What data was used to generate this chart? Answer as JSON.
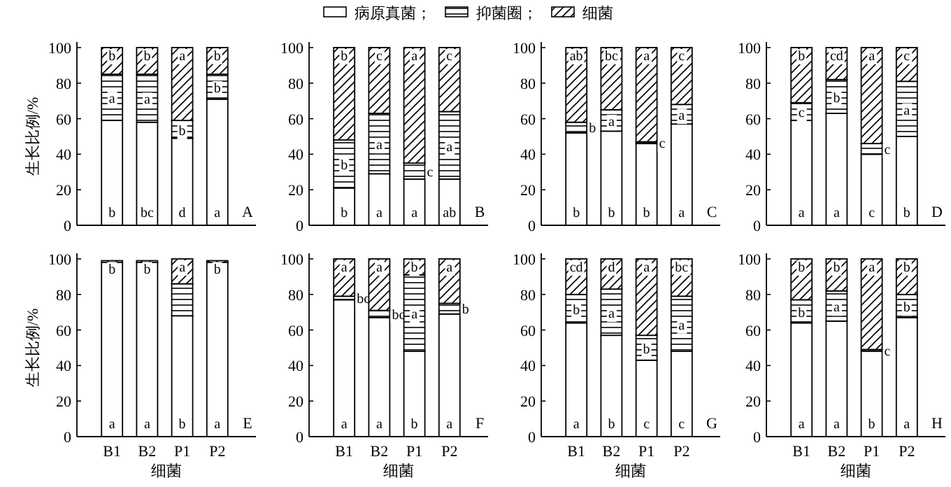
{
  "chart_data": [
    {
      "type": "bar",
      "stacked": true,
      "categories": [
        null,
        null,
        null,
        null
      ],
      "ylabel": "生长比例/%",
      "ylim": [
        0,
        100
      ],
      "yticks": [
        0,
        20,
        40,
        60,
        80,
        100
      ],
      "tick_labels": "y",
      "legend": "top",
      "annotations": [
        "A"
      ],
      "series": [
        {
          "name": "病原真菌；",
          "color": "#ffffff",
          "values": [
            59,
            58,
            49,
            71
          ],
          "value_labels": [
            "b",
            "bc",
            "d",
            "a"
          ]
        },
        {
          "name": "抑菌圈；",
          "color": "#000000",
          "values": [
            26,
            27,
            10,
            14
          ],
          "value_labels": [
            "a",
            "a",
            "b",
            "b"
          ]
        },
        {
          "name": "细菌",
          "color": "#000000",
          "values": [
            15,
            15,
            41,
            15
          ],
          "value_labels": [
            "b",
            "b",
            "a",
            "b"
          ]
        }
      ]
    },
    {
      "type": "bar",
      "stacked": true,
      "categories": [
        null,
        null,
        null,
        null
      ],
      "ylim": [
        0,
        100
      ],
      "yticks": [
        0,
        20,
        40,
        60,
        80,
        100
      ],
      "tick_labels": "y",
      "annotations": [
        "B"
      ],
      "series": [
        {
          "color": "#ffffff",
          "values": [
            21,
            29,
            26,
            26
          ],
          "value_labels": [
            "b",
            "a",
            "a",
            "ab"
          ]
        },
        {
          "color": "#000000",
          "values": [
            27,
            34,
            9,
            38
          ],
          "value_labels": [
            "b",
            "a",
            "c",
            "a"
          ]
        },
        {
          "color": "#000000",
          "values": [
            52,
            37,
            65,
            36
          ],
          "value_labels": [
            "b",
            "c",
            "a",
            "c"
          ]
        }
      ]
    },
    {
      "type": "bar",
      "stacked": true,
      "categories": [
        null,
        null,
        null,
        null
      ],
      "ylim": [
        0,
        100
      ],
      "yticks": [
        0,
        20,
        40,
        60,
        80,
        100
      ],
      "tick_labels": "y",
      "annotations": [
        "C"
      ],
      "series": [
        {
          "color": "#ffffff",
          "values": [
            52,
            53,
            46,
            57
          ],
          "value_labels": [
            "b",
            "b",
            "b",
            "a"
          ]
        },
        {
          "color": "#000000",
          "values": [
            6,
            12,
            1,
            11
          ],
          "value_labels": [
            "b",
            "a",
            "c",
            "a"
          ]
        },
        {
          "color": "#000000",
          "values": [
            42,
            35,
            53,
            32
          ],
          "value_labels": [
            "ab",
            "bc",
            "a",
            "c"
          ]
        }
      ]
    },
    {
      "type": "bar",
      "stacked": true,
      "categories": [
        null,
        null,
        null,
        null
      ],
      "ylim": [
        0,
        100
      ],
      "yticks": [
        0,
        20,
        40,
        60,
        80,
        100
      ],
      "tick_labels": "y",
      "annotations": [
        "D"
      ],
      "series": [
        {
          "color": "#ffffff",
          "values": [
            59,
            63,
            40,
            50
          ],
          "value_labels": [
            "a",
            "a",
            "c",
            "b"
          ]
        },
        {
          "color": "#000000",
          "values": [
            10,
            19,
            6,
            31
          ],
          "value_labels": [
            "c",
            "b",
            "c",
            "a"
          ]
        },
        {
          "color": "#000000",
          "values": [
            31,
            18,
            54,
            19
          ],
          "value_labels": [
            "b",
            "cd",
            "a",
            "c"
          ]
        }
      ]
    },
    {
      "type": "bar",
      "stacked": true,
      "categories": [
        "B1",
        "B2",
        "P1",
        "P2"
      ],
      "xlabel": "细菌",
      "ylabel": "生长比例/%",
      "ylim": [
        0,
        100
      ],
      "yticks": [
        0,
        20,
        40,
        60,
        80,
        100
      ],
      "annotations": [
        "E"
      ],
      "series": [
        {
          "color": "#ffffff",
          "values": [
            98,
            98,
            68,
            98
          ],
          "value_labels": [
            "a",
            "a",
            "b",
            "a"
          ]
        },
        {
          "color": "#000000",
          "values": [
            null,
            null,
            18,
            null
          ]
        },
        {
          "color": "#000000",
          "values": [
            1,
            1,
            14,
            1
          ],
          "value_labels": [
            "b",
            "b",
            "a",
            "b"
          ]
        }
      ]
    },
    {
      "type": "bar",
      "stacked": true,
      "categories": [
        "B1",
        "B2",
        "P1",
        "P2"
      ],
      "xlabel": "细菌",
      "ylim": [
        0,
        100
      ],
      "yticks": [
        0,
        20,
        40,
        60,
        80,
        100
      ],
      "annotations": [
        "F"
      ],
      "series": [
        {
          "color": "#ffffff",
          "values": [
            77,
            67,
            48,
            69
          ],
          "value_labels": [
            "a",
            "a",
            "b",
            "a"
          ]
        },
        {
          "color": "#000000",
          "values": [
            2,
            4,
            43,
            6
          ],
          "value_labels": [
            "bc",
            "bc",
            "a",
            "b"
          ]
        },
        {
          "color": "#000000",
          "values": [
            21,
            29,
            9,
            25
          ],
          "value_labels": [
            "a",
            "a",
            "b",
            "a"
          ]
        }
      ]
    },
    {
      "type": "bar",
      "stacked": true,
      "categories": [
        "B1",
        "B2",
        "P1",
        "P2"
      ],
      "xlabel": "细菌",
      "ylim": [
        0,
        100
      ],
      "yticks": [
        0,
        20,
        40,
        60,
        80,
        100
      ],
      "annotations": [
        "G"
      ],
      "series": [
        {
          "color": "#ffffff",
          "values": [
            64,
            57,
            43,
            48
          ],
          "value_labels": [
            "a",
            "b",
            "c",
            "c"
          ]
        },
        {
          "color": "#000000",
          "values": [
            16,
            26,
            14,
            31
          ],
          "value_labels": [
            "b",
            "a",
            "b",
            "a"
          ]
        },
        {
          "color": "#000000",
          "values": [
            20,
            17,
            43,
            21
          ],
          "value_labels": [
            "cd",
            "d",
            "a",
            "bc"
          ]
        }
      ]
    },
    {
      "type": "bar",
      "stacked": true,
      "categories": [
        "B1",
        "B2",
        "P1",
        "P2"
      ],
      "xlabel": "细菌",
      "ylim": [
        0,
        100
      ],
      "yticks": [
        0,
        20,
        40,
        60,
        80,
        100
      ],
      "annotations": [
        "H"
      ],
      "series": [
        {
          "color": "#ffffff",
          "values": [
            64,
            65,
            48,
            67
          ],
          "value_labels": [
            "a",
            "a",
            "b",
            "a"
          ]
        },
        {
          "color": "#000000",
          "values": [
            13,
            17,
            1,
            13
          ],
          "value_labels": [
            "b",
            "a",
            "c",
            "b"
          ]
        },
        {
          "color": "#000000",
          "values": [
            23,
            18,
            51,
            20
          ],
          "value_labels": [
            "b",
            "b",
            "a",
            "b"
          ]
        }
      ]
    }
  ]
}
